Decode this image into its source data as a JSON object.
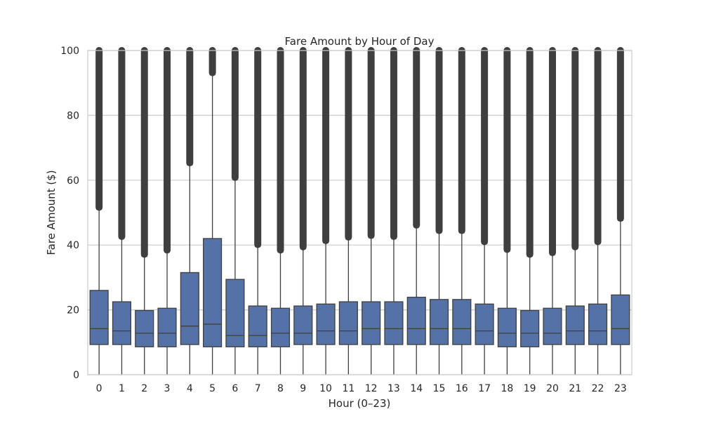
{
  "chart_data": {
    "type": "box",
    "title": "Fare Amount by Hour of Day",
    "xlabel": "Hour (0–23)",
    "ylabel": "Fare Amount ($)",
    "ylim": [
      0,
      100
    ],
    "yticks": [
      0,
      20,
      40,
      60,
      80,
      100
    ],
    "grid": "horizontal",
    "categories": [
      "0",
      "1",
      "2",
      "3",
      "4",
      "5",
      "6",
      "7",
      "8",
      "9",
      "10",
      "11",
      "12",
      "13",
      "14",
      "15",
      "16",
      "17",
      "18",
      "19",
      "20",
      "21",
      "22",
      "23"
    ],
    "boxes": [
      {
        "q1": 9.3,
        "median": 14.2,
        "q3": 26.0,
        "whisker_low": 0,
        "whisker_high": 51.0,
        "outliers_top": 100
      },
      {
        "q1": 9.3,
        "median": 13.5,
        "q3": 22.5,
        "whisker_low": 0,
        "whisker_high": 42.0,
        "outliers_top": 100
      },
      {
        "q1": 8.6,
        "median": 12.8,
        "q3": 19.8,
        "whisker_low": 0,
        "whisker_high": 36.5,
        "outliers_top": 100
      },
      {
        "q1": 8.6,
        "median": 12.8,
        "q3": 20.5,
        "whisker_low": 0,
        "whisker_high": 37.8,
        "outliers_top": 100
      },
      {
        "q1": 9.3,
        "median": 15.0,
        "q3": 31.5,
        "whisker_low": 0,
        "whisker_high": 64.7,
        "outliers_top": 100
      },
      {
        "q1": 8.6,
        "median": 15.6,
        "q3": 42.0,
        "whisker_low": 0,
        "whisker_high": 92.5,
        "outliers_top": 100
      },
      {
        "q1": 8.6,
        "median": 12.1,
        "q3": 29.4,
        "whisker_low": 0,
        "whisker_high": 60.2,
        "outliers_top": 100
      },
      {
        "q1": 8.6,
        "median": 12.1,
        "q3": 21.2,
        "whisker_low": 0,
        "whisker_high": 39.5,
        "outliers_top": 100
      },
      {
        "q1": 8.6,
        "median": 12.8,
        "q3": 20.5,
        "whisker_low": 0,
        "whisker_high": 37.8,
        "outliers_top": 100
      },
      {
        "q1": 9.3,
        "median": 12.8,
        "q3": 21.2,
        "whisker_low": 0,
        "whisker_high": 38.8,
        "outliers_top": 100
      },
      {
        "q1": 9.3,
        "median": 13.5,
        "q3": 21.8,
        "whisker_low": 0,
        "whisker_high": 40.7,
        "outliers_top": 100
      },
      {
        "q1": 9.3,
        "median": 13.5,
        "q3": 22.5,
        "whisker_low": 0,
        "whisker_high": 41.8,
        "outliers_top": 100
      },
      {
        "q1": 9.3,
        "median": 14.2,
        "q3": 22.5,
        "whisker_low": 0,
        "whisker_high": 42.3,
        "outliers_top": 100
      },
      {
        "q1": 9.3,
        "median": 14.2,
        "q3": 22.5,
        "whisker_low": 0,
        "whisker_high": 42.0,
        "outliers_top": 100
      },
      {
        "q1": 9.3,
        "median": 14.2,
        "q3": 23.9,
        "whisker_low": 0,
        "whisker_high": 45.5,
        "outliers_top": 100
      },
      {
        "q1": 9.3,
        "median": 14.2,
        "q3": 23.2,
        "whisker_low": 0,
        "whisker_high": 43.8,
        "outliers_top": 100
      },
      {
        "q1": 9.3,
        "median": 14.2,
        "q3": 23.2,
        "whisker_low": 0,
        "whisker_high": 43.8,
        "outliers_top": 100
      },
      {
        "q1": 9.3,
        "median": 13.5,
        "q3": 21.8,
        "whisker_low": 0,
        "whisker_high": 40.4,
        "outliers_top": 100
      },
      {
        "q1": 8.6,
        "median": 12.8,
        "q3": 20.5,
        "whisker_low": 0,
        "whisker_high": 38.0,
        "outliers_top": 100
      },
      {
        "q1": 8.6,
        "median": 12.8,
        "q3": 19.8,
        "whisker_low": 0,
        "whisker_high": 36.5,
        "outliers_top": 100
      },
      {
        "q1": 9.3,
        "median": 12.8,
        "q3": 20.5,
        "whisker_low": 0,
        "whisker_high": 37.0,
        "outliers_top": 100
      },
      {
        "q1": 9.3,
        "median": 13.5,
        "q3": 21.2,
        "whisker_low": 0,
        "whisker_high": 38.8,
        "outliers_top": 100
      },
      {
        "q1": 9.3,
        "median": 13.5,
        "q3": 21.8,
        "whisker_low": 0,
        "whisker_high": 40.4,
        "outliers_top": 100
      },
      {
        "q1": 9.3,
        "median": 14.2,
        "q3": 24.6,
        "whisker_low": 0,
        "whisker_high": 47.6,
        "outliers_top": 100
      }
    ],
    "colors": {
      "box_fill": "#5572a6",
      "box_stroke": "#3f3f3f",
      "outlier": "#3f3f3f",
      "grid": "#cccccc",
      "frame": "#cccccc",
      "text": "#262626"
    }
  }
}
